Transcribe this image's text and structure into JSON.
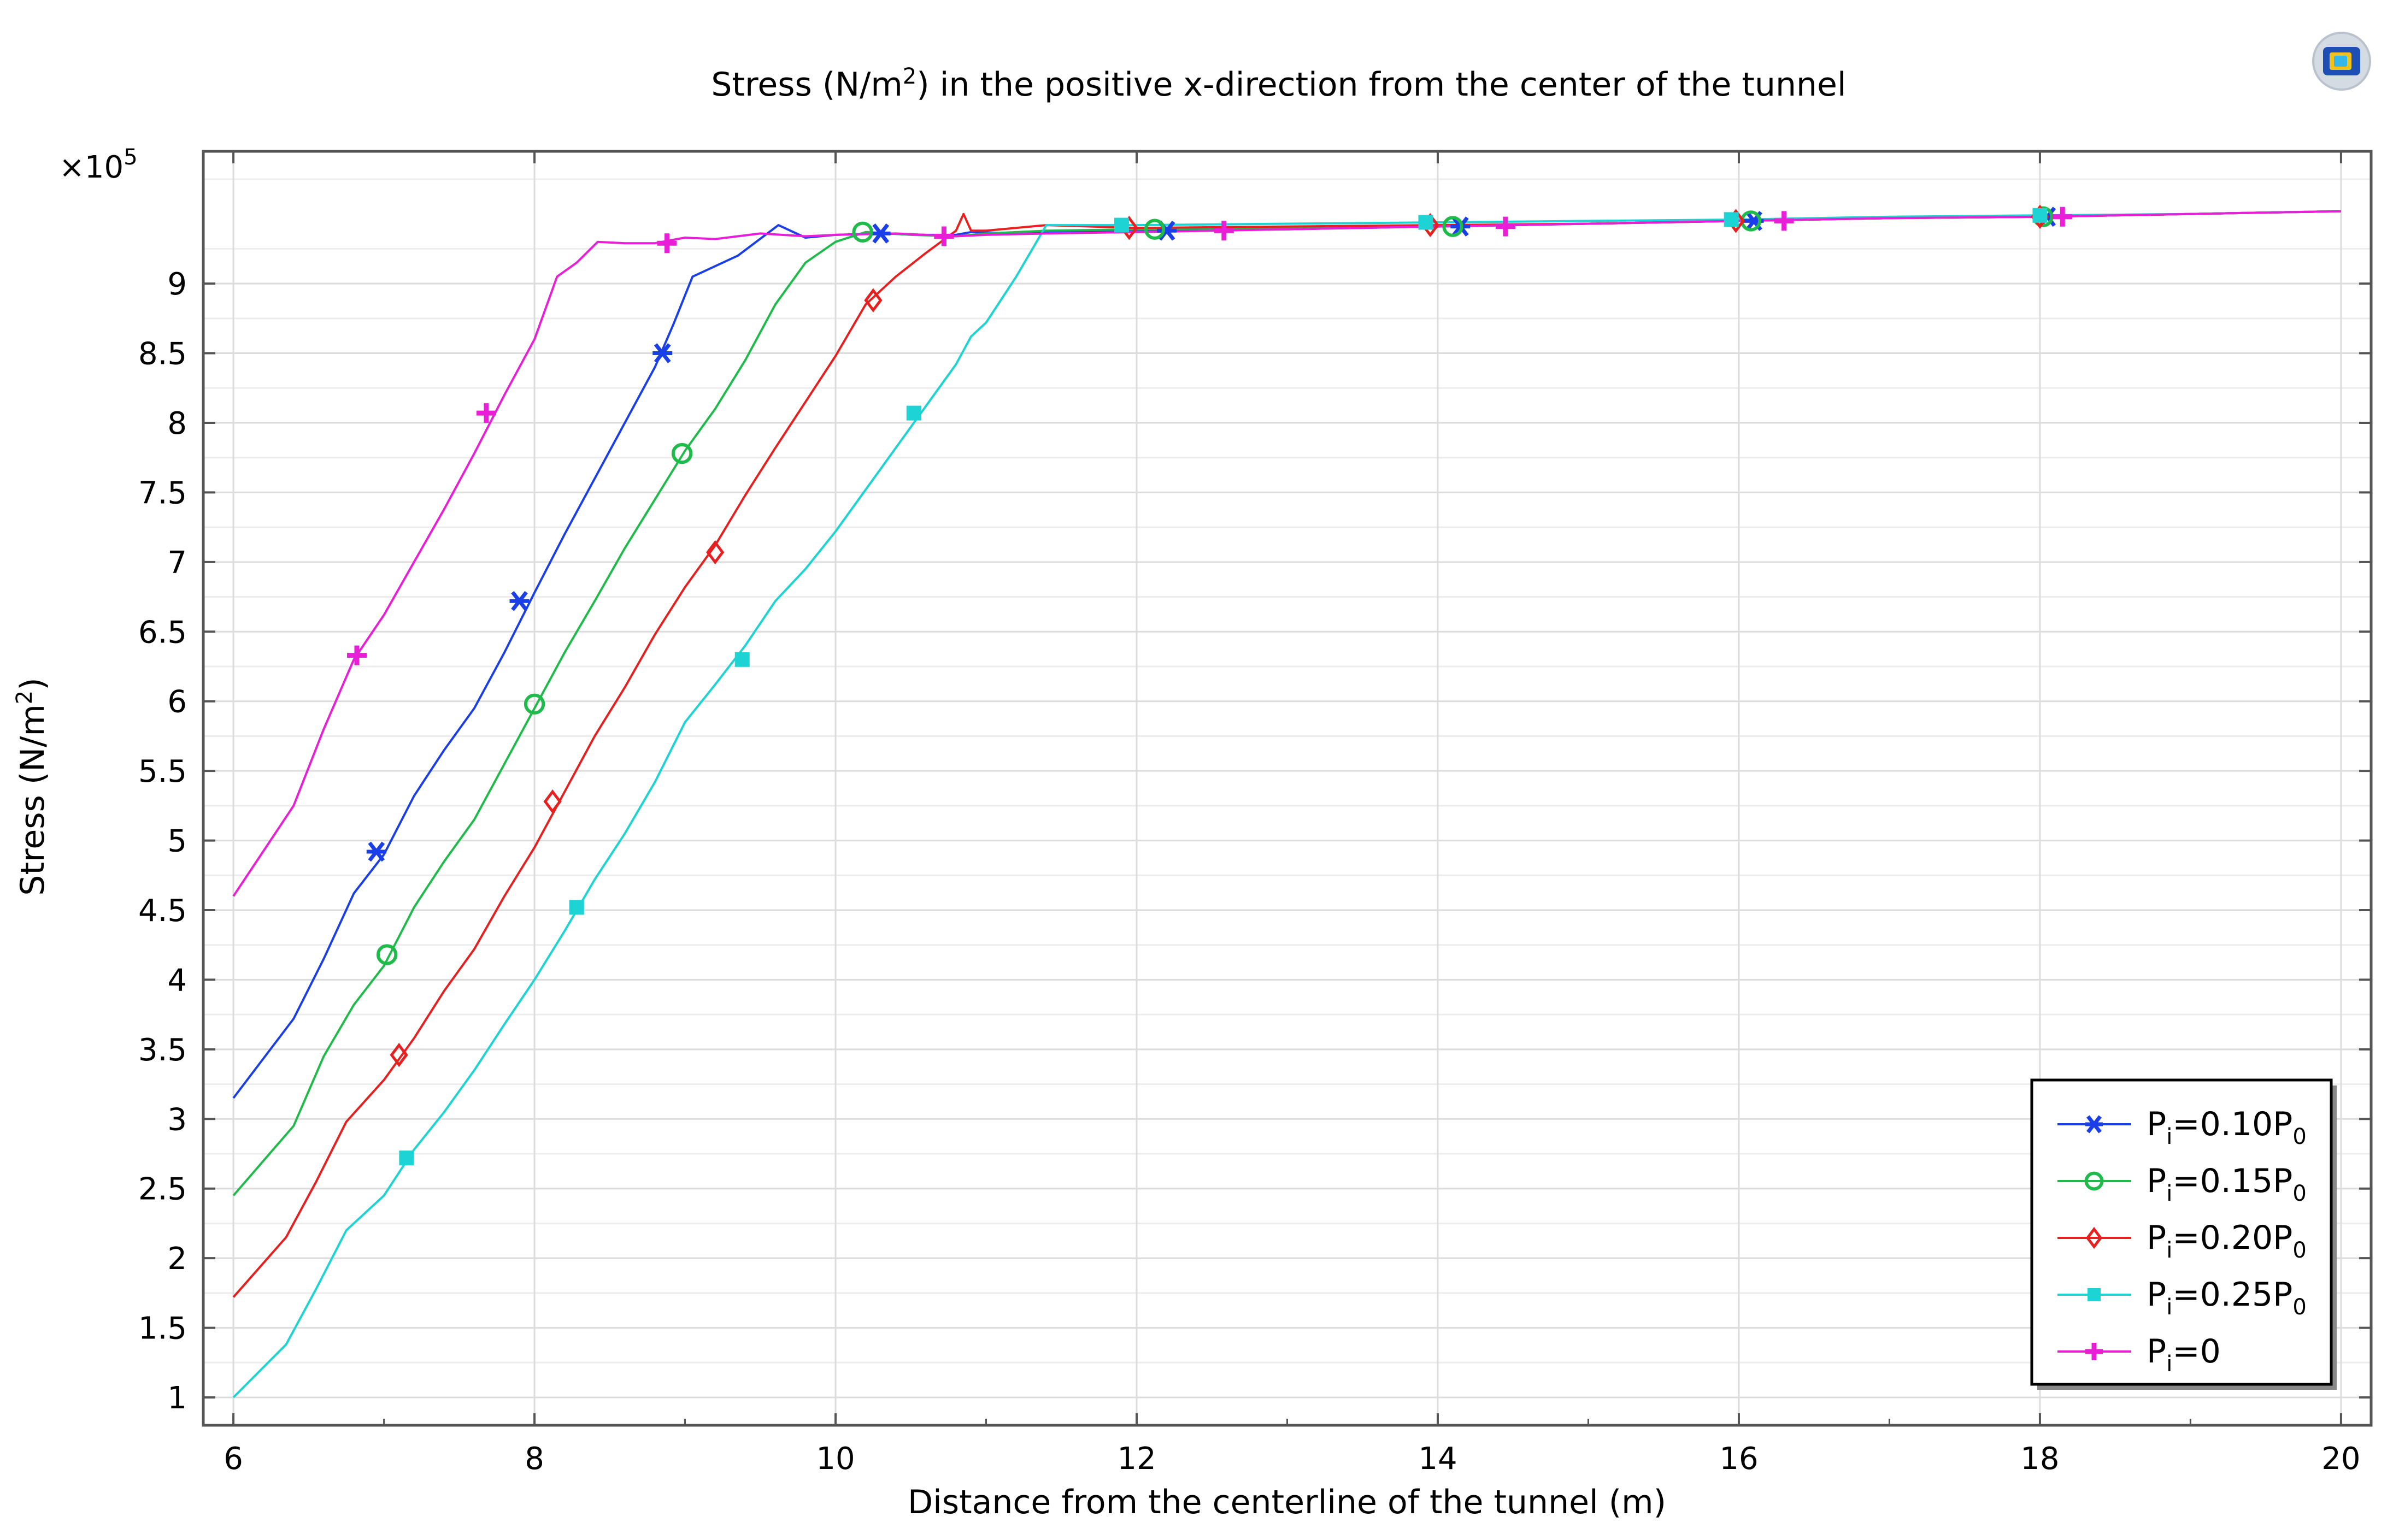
{
  "chart_data": {
    "type": "line",
    "title": {
      "prefix": "Stress (N/m",
      "sup": "2",
      "suffix": ") in the positive x-direction from the center of the tunnel"
    },
    "xlabel": "Distance from the centerline of the tunnel (m)",
    "ylabel": {
      "prefix": "Stress (N/m",
      "sup": "2",
      "suffix": ")"
    },
    "y_multiplier": {
      "base": "×10",
      "exp": "5"
    },
    "xlim": [
      5.8,
      20.2
    ],
    "ylim": [
      0.8,
      9.95
    ],
    "xticks": [
      6,
      8,
      10,
      12,
      14,
      16,
      18,
      20
    ],
    "xtick_labels": [
      "6",
      "8",
      "10",
      "12",
      "14",
      "16",
      "18",
      "20"
    ],
    "yticks": [
      1,
      1.5,
      2,
      2.5,
      3,
      3.5,
      4,
      4.5,
      5,
      5.5,
      6,
      6.5,
      7,
      7.5,
      8,
      8.5,
      9
    ],
    "ytick_labels": [
      "1",
      "1.5",
      "2",
      "2.5",
      "3",
      "3.5",
      "4",
      "4.5",
      "5",
      "5.5",
      "6",
      "6.5",
      "7",
      "7.5",
      "8",
      "8.5",
      "9"
    ],
    "grid": true,
    "legend_position": "bottom-right",
    "series": [
      {
        "name": {
          "a": "P",
          "b": "i",
          "c": "=0.10P",
          "d": "0"
        },
        "color": "#1a3ee8",
        "marker": "asterisk",
        "x": [
          6.0,
          6.4,
          6.6,
          6.8,
          7.0,
          7.2,
          7.4,
          7.6,
          7.8,
          8.0,
          8.2,
          8.4,
          8.6,
          8.8,
          8.92,
          9.05,
          9.35,
          9.62,
          9.8,
          10.0,
          10.3,
          10.6,
          10.8,
          10.9,
          11.2,
          11.6,
          12.0,
          13.0,
          14.0,
          15.0,
          16.0,
          17.0,
          18.0,
          19.0,
          20.0
        ],
        "y": [
          3.15,
          3.72,
          4.15,
          4.62,
          4.9,
          5.32,
          5.65,
          5.95,
          6.35,
          6.78,
          7.2,
          7.6,
          8.0,
          8.4,
          8.7,
          9.05,
          9.2,
          9.42,
          9.33,
          9.35,
          9.36,
          9.35,
          9.35,
          9.37,
          9.36,
          9.37,
          9.38,
          9.39,
          9.41,
          9.43,
          9.45,
          9.47,
          9.48,
          9.5,
          9.52
        ],
        "marker_x": [
          6.95,
          7.9,
          8.85,
          10.3,
          12.2,
          14.15,
          16.1,
          18.05
        ],
        "marker_y": [
          4.92,
          6.72,
          8.5,
          9.36,
          9.38,
          9.41,
          9.45,
          9.48
        ]
      },
      {
        "name": {
          "a": "P",
          "b": "i",
          "c": "=0.15P",
          "d": "0"
        },
        "color": "#1fbb4a",
        "marker": "circle",
        "x": [
          6.0,
          6.4,
          6.6,
          6.8,
          7.0,
          7.2,
          7.4,
          7.6,
          7.8,
          8.0,
          8.2,
          8.4,
          8.6,
          8.8,
          9.0,
          9.2,
          9.4,
          9.6,
          9.8,
          10.0,
          10.2,
          10.5,
          10.8,
          11.0,
          11.4,
          12.0,
          13.0,
          14.0,
          15.0,
          16.0,
          17.0,
          18.0,
          19.0,
          20.0
        ],
        "y": [
          2.45,
          2.95,
          3.45,
          3.82,
          4.1,
          4.52,
          4.85,
          5.15,
          5.55,
          5.95,
          6.35,
          6.72,
          7.1,
          7.45,
          7.8,
          8.1,
          8.45,
          8.85,
          9.15,
          9.3,
          9.37,
          9.35,
          9.34,
          9.36,
          9.38,
          9.39,
          9.4,
          9.41,
          9.43,
          9.45,
          9.47,
          9.48,
          9.5,
          9.52
        ],
        "marker_x": [
          7.02,
          8.0,
          8.98,
          10.18,
          12.12,
          14.1,
          16.08,
          18.02
        ],
        "marker_y": [
          4.18,
          5.98,
          7.78,
          9.37,
          9.39,
          9.41,
          9.45,
          9.48
        ]
      },
      {
        "name": {
          "a": "P",
          "b": "i",
          "c": "=0.20P",
          "d": "0"
        },
        "color": "#e81f1f",
        "marker": "diamond",
        "x": [
          6.0,
          6.35,
          6.55,
          6.75,
          7.0,
          7.2,
          7.4,
          7.6,
          7.8,
          8.0,
          8.2,
          8.4,
          8.6,
          8.8,
          9.0,
          9.2,
          9.4,
          9.6,
          9.8,
          10.0,
          10.2,
          10.4,
          10.6,
          10.8,
          10.85,
          10.9,
          11.0,
          11.4,
          12.0,
          13.0,
          14.0,
          15.0,
          16.0,
          17.0,
          18.0,
          19.0,
          20.0
        ],
        "y": [
          1.72,
          2.15,
          2.55,
          2.98,
          3.28,
          3.58,
          3.92,
          4.22,
          4.6,
          4.95,
          5.35,
          5.75,
          6.1,
          6.48,
          6.82,
          7.12,
          7.48,
          7.82,
          8.15,
          8.48,
          8.85,
          9.05,
          9.22,
          9.38,
          9.5,
          9.38,
          9.38,
          9.42,
          9.4,
          9.41,
          9.42,
          9.43,
          9.45,
          9.47,
          9.48,
          9.5,
          9.52
        ],
        "marker_x": [
          7.1,
          8.12,
          9.2,
          10.25,
          11.95,
          13.95,
          15.98,
          18.0
        ],
        "marker_y": [
          3.46,
          5.28,
          7.07,
          8.88,
          9.4,
          9.42,
          9.45,
          9.48
        ]
      },
      {
        "name": {
          "a": "P",
          "b": "i",
          "c": "=0.25P",
          "d": "0"
        },
        "color": "#1dd3d3",
        "marker": "square",
        "x": [
          6.0,
          6.35,
          6.55,
          6.75,
          7.0,
          7.2,
          7.4,
          7.6,
          7.8,
          8.0,
          8.2,
          8.4,
          8.6,
          8.8,
          9.0,
          9.2,
          9.4,
          9.6,
          9.8,
          10.0,
          10.2,
          10.4,
          10.6,
          10.8,
          10.9,
          11.0,
          11.2,
          11.4,
          11.6,
          12.0,
          13.0,
          14.0,
          15.0,
          16.0,
          17.0,
          18.0,
          19.0,
          20.0
        ],
        "y": [
          1.0,
          1.38,
          1.78,
          2.2,
          2.45,
          2.78,
          3.05,
          3.35,
          3.68,
          4.0,
          4.35,
          4.72,
          5.05,
          5.42,
          5.85,
          6.12,
          6.4,
          6.72,
          6.95,
          7.22,
          7.52,
          7.82,
          8.12,
          8.42,
          8.62,
          8.72,
          9.05,
          9.42,
          9.42,
          9.42,
          9.43,
          9.44,
          9.45,
          9.46,
          9.48,
          9.49,
          9.5,
          9.52
        ],
        "marker_x": [
          7.15,
          8.28,
          9.38,
          10.52,
          11.9,
          13.92,
          15.95,
          18.0
        ],
        "marker_y": [
          2.72,
          4.52,
          6.3,
          8.07,
          9.42,
          9.44,
          9.46,
          9.49
        ]
      },
      {
        "name": {
          "a": "P",
          "b": "i",
          "c": "=0",
          "d": ""
        },
        "color": "#e81fd6",
        "marker": "plus",
        "x": [
          6.0,
          6.4,
          6.6,
          6.8,
          7.0,
          7.2,
          7.4,
          7.6,
          7.8,
          8.0,
          8.15,
          8.28,
          8.42,
          8.6,
          8.8,
          9.0,
          9.2,
          9.5,
          9.8,
          10.0,
          10.4,
          10.8,
          11.0,
          11.4,
          12.0,
          13.0,
          14.0,
          15.0,
          16.0,
          17.0,
          18.0,
          19.0,
          20.0
        ],
        "y": [
          4.6,
          5.25,
          5.8,
          6.3,
          6.62,
          7.0,
          7.38,
          7.78,
          8.2,
          8.6,
          9.05,
          9.15,
          9.3,
          9.29,
          9.29,
          9.33,
          9.32,
          9.36,
          9.34,
          9.35,
          9.36,
          9.34,
          9.35,
          9.36,
          9.37,
          9.39,
          9.41,
          9.43,
          9.45,
          9.47,
          9.48,
          9.5,
          9.52
        ],
        "marker_x": [
          6.82,
          7.68,
          8.88,
          10.72,
          12.58,
          14.45,
          16.3,
          18.15
        ],
        "marker_y": [
          6.33,
          8.07,
          9.29,
          9.34,
          9.38,
          9.41,
          9.45,
          9.48
        ]
      }
    ]
  }
}
